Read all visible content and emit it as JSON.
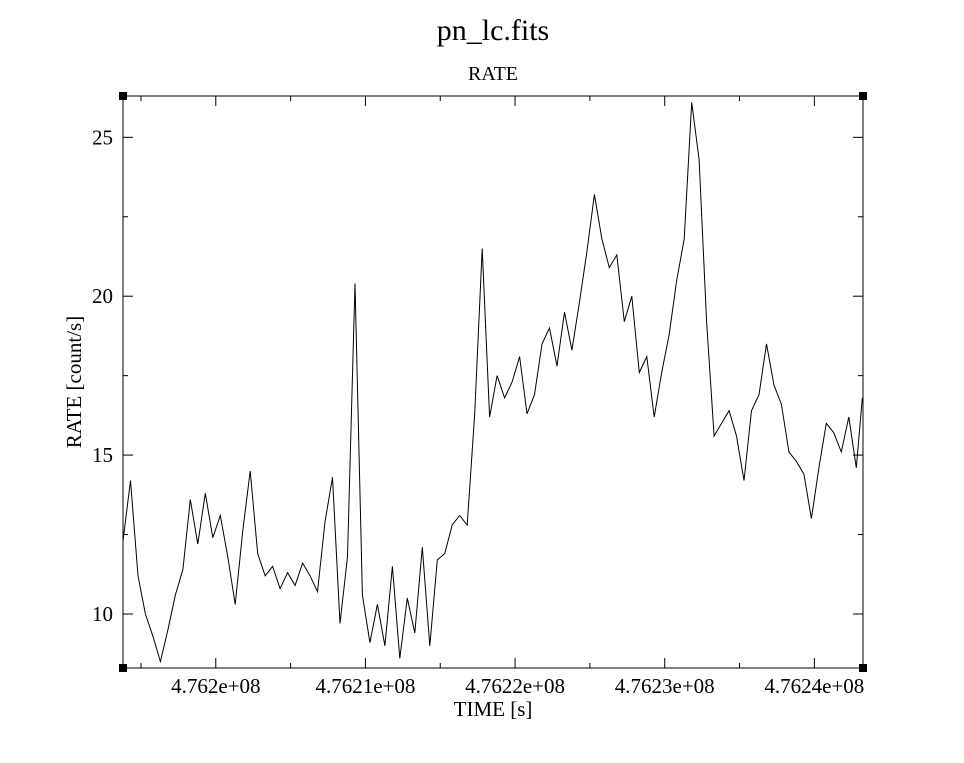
{
  "chart_data": {
    "type": "line",
    "title": "pn_lc.fits",
    "subtitle": "RATE",
    "xlabel": "TIME [s]",
    "ylabel": "RATE [count/s]",
    "xlim": [
      476193800,
      476243250
    ],
    "ylim": [
      8.3,
      26.3
    ],
    "x_ticks": [
      476200000,
      476210000,
      476220000,
      476230000,
      476240000
    ],
    "x_tick_labels": [
      "4.762e+08",
      "4.7621e+08",
      "4.7622e+08",
      "4.7623e+08",
      "4.7624e+08"
    ],
    "y_ticks": [
      10,
      15,
      20,
      25
    ],
    "y_tick_labels": [
      "10",
      "15",
      "20",
      "25"
    ],
    "grid": false,
    "series": [
      {
        "x": [
          476193800,
          476194300,
          476194800,
          476195300,
          476195800,
          476196300,
          476196800,
          476197300,
          476197800,
          476198300,
          476198800,
          476199300,
          476199800,
          476200300,
          476200800,
          476201300,
          476201800,
          476202300,
          476202800,
          476203300,
          476203800,
          476204300,
          476204800,
          476205300,
          476205800,
          476206300,
          476206800,
          476207300,
          476207800,
          476208300,
          476208800,
          476209300,
          476209800,
          476210300,
          476210800,
          476211300,
          476211800,
          476212300,
          476212800,
          476213300,
          476213800,
          476214300,
          476214800,
          476215300,
          476215800,
          476216300,
          476216800,
          476217300,
          476217800,
          476218300,
          476218800,
          476219300,
          476219800,
          476220300,
          476220800,
          476221300,
          476221800,
          476222300,
          476222800,
          476223300,
          476223800,
          476224300,
          476224800,
          476225300,
          476225800,
          476226300,
          476226800,
          476227300,
          476227800,
          476228300,
          476228800,
          476229300,
          476229800,
          476230300,
          476230800,
          476231300,
          476231800,
          476232300,
          476232800,
          476233300,
          476233800,
          476234300,
          476234800,
          476235300,
          476235800,
          476236300,
          476236800,
          476237300,
          476237800,
          476238300,
          476238800,
          476239300,
          476239800,
          476240300,
          476240800,
          476241300,
          476241800,
          476242300,
          476242800,
          476243200
        ],
        "y": [
          12.3,
          14.2,
          11.2,
          10.0,
          9.3,
          8.5,
          9.5,
          10.6,
          11.4,
          13.6,
          12.2,
          13.8,
          12.4,
          13.1,
          11.8,
          10.3,
          12.6,
          14.5,
          11.9,
          11.2,
          11.5,
          10.8,
          11.3,
          10.9,
          11.6,
          11.2,
          10.7,
          12.9,
          14.3,
          9.7,
          11.8,
          20.4,
          10.6,
          9.1,
          10.3,
          9.0,
          11.5,
          8.6,
          10.5,
          9.4,
          12.1,
          9.0,
          11.7,
          11.9,
          12.8,
          13.1,
          12.8,
          16.3,
          21.5,
          16.2,
          17.5,
          16.8,
          17.3,
          18.1,
          16.3,
          16.9,
          18.5,
          19.0,
          17.8,
          19.5,
          18.3,
          19.8,
          21.4,
          23.2,
          21.8,
          20.9,
          21.3,
          19.2,
          20.0,
          17.6,
          18.1,
          16.2,
          17.6,
          18.8,
          20.5,
          21.8,
          26.1,
          24.3,
          19.2,
          15.6,
          16.0,
          16.4,
          15.6,
          14.2,
          16.4,
          16.9,
          18.5,
          17.2,
          16.6,
          15.1,
          14.8,
          14.4,
          13.0,
          14.6,
          16.0,
          15.7,
          15.1,
          16.2,
          14.6,
          16.8
        ]
      }
    ]
  }
}
